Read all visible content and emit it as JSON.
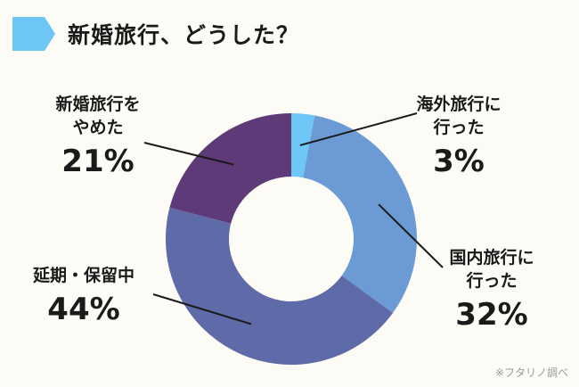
{
  "header": {
    "title": "新婚旅行、どうした？",
    "accent_color": "#6dc6f5",
    "marker_icon": "arrow-tag-icon"
  },
  "chart_data": {
    "type": "pie",
    "variant": "donut",
    "title": "新婚旅行、どうした？",
    "slices": [
      {
        "label_lines": [
          "海外旅行に",
          "行った"
        ],
        "value": 3,
        "value_label": "3%",
        "color": "#6dc6f5"
      },
      {
        "label_lines": [
          "国内旅行に",
          "行った"
        ],
        "value": 32,
        "value_label": "32%",
        "color": "#6b9ad5"
      },
      {
        "label_lines": [
          "延期・保留中"
        ],
        "value": 44,
        "value_label": "44%",
        "color": "#5f6aa8"
      },
      {
        "label_lines": [
          "新婚旅行を",
          "やめた"
        ],
        "value": 21,
        "value_label": "21%",
        "color": "#5e3a78"
      }
    ],
    "start": "12 o'clock",
    "direction": "clockwise",
    "legend": "none"
  },
  "footer": {
    "source": "※フタリノ調べ"
  }
}
